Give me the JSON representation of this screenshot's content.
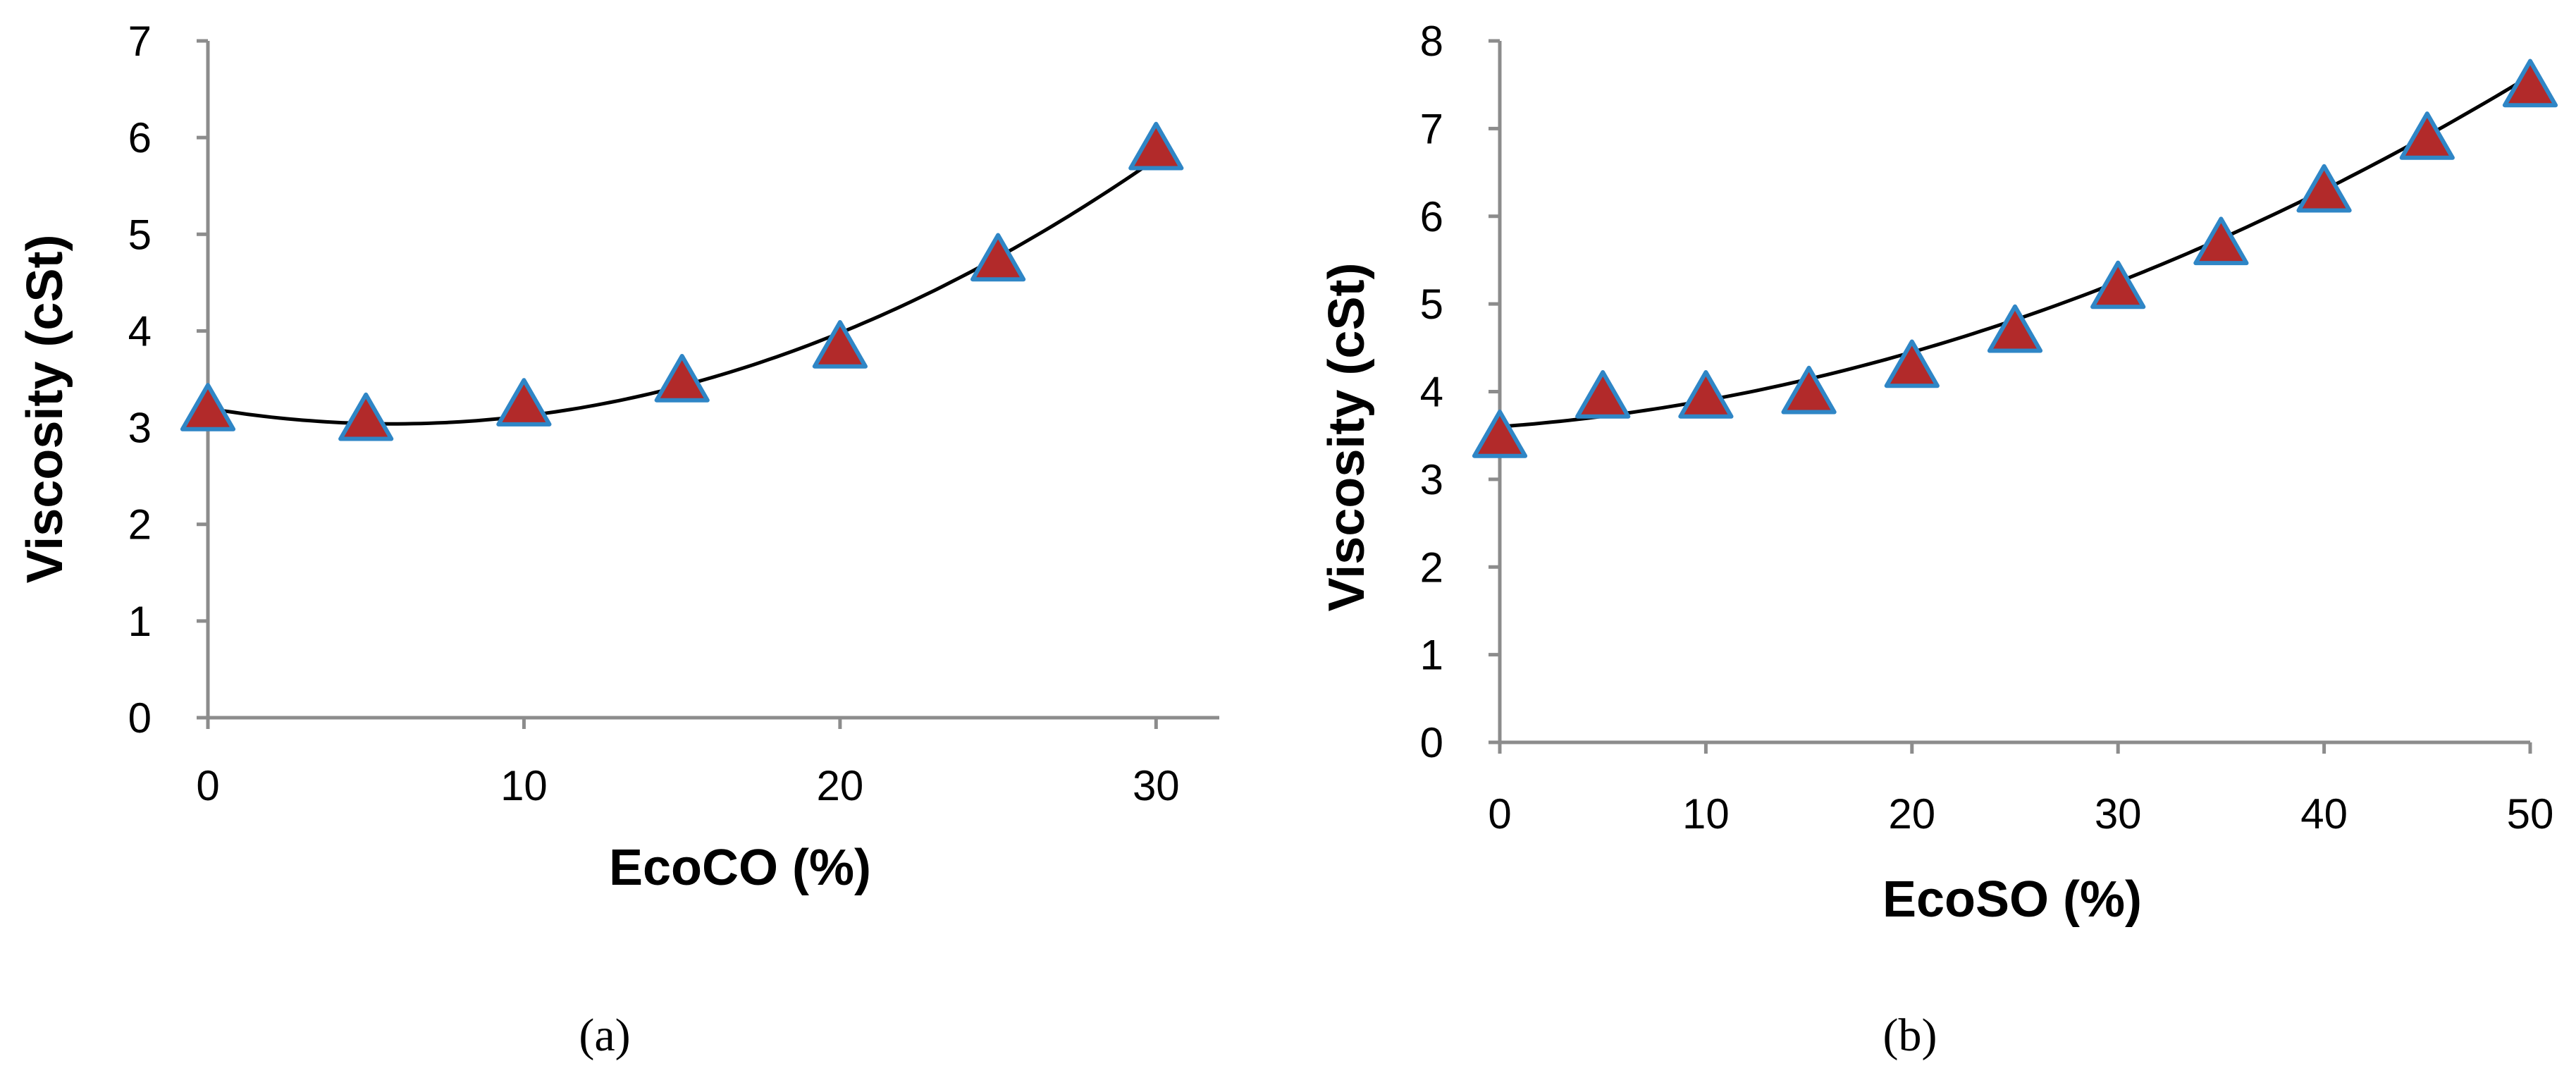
{
  "figure": {
    "panel_labels": [
      "(a)",
      "(b)"
    ]
  },
  "colors": {
    "axis": "#8c8c8c",
    "fit_line": "#000000",
    "marker_fill": "#b22a2a",
    "marker_edge": "#2f86c6"
  },
  "chart_data": [
    {
      "type": "scatter",
      "panel": "(a)",
      "title": "",
      "xlabel": "EcoCO (%)",
      "ylabel": "Viscosity (cSt)",
      "xlim": [
        0,
        32
      ],
      "ylim": [
        0,
        7
      ],
      "x_ticks": [
        0,
        10,
        20,
        30
      ],
      "y_ticks": [
        0,
        1,
        2,
        3,
        4,
        5,
        6,
        7
      ],
      "grid": false,
      "series": [
        {
          "name": "Viscosity",
          "marker": "triangle",
          "x": [
            0,
            5,
            10,
            15,
            20,
            25,
            30
          ],
          "y": [
            3.15,
            3.05,
            3.2,
            3.45,
            3.8,
            4.7,
            5.85
          ]
        }
      ],
      "trendline": {
        "type": "polynomial-2",
        "x_range": [
          0,
          30
        ],
        "coefficients": [
          3.2,
          -0.055,
          0.0047
        ]
      }
    },
    {
      "type": "scatter",
      "panel": "(b)",
      "title": "",
      "xlabel": "EcoSO (%)",
      "ylabel": "Viscosity (cSt)",
      "xlim": [
        0,
        50
      ],
      "ylim": [
        0,
        8
      ],
      "x_ticks": [
        0,
        10,
        20,
        30,
        40,
        50
      ],
      "y_ticks": [
        0,
        1,
        2,
        3,
        4,
        5,
        6,
        7,
        8
      ],
      "grid": false,
      "series": [
        {
          "name": "Viscosity",
          "marker": "triangle",
          "x": [
            0,
            5,
            10,
            15,
            20,
            25,
            30,
            35,
            40,
            45,
            50
          ],
          "y": [
            3.45,
            3.9,
            3.9,
            3.95,
            4.25,
            4.65,
            5.15,
            5.65,
            6.25,
            6.85,
            7.45
          ]
        }
      ],
      "trendline": {
        "type": "polynomial-2",
        "x_range": [
          0,
          50
        ],
        "coefficients": [
          3.6,
          0.0175,
          0.00125
        ]
      }
    }
  ]
}
